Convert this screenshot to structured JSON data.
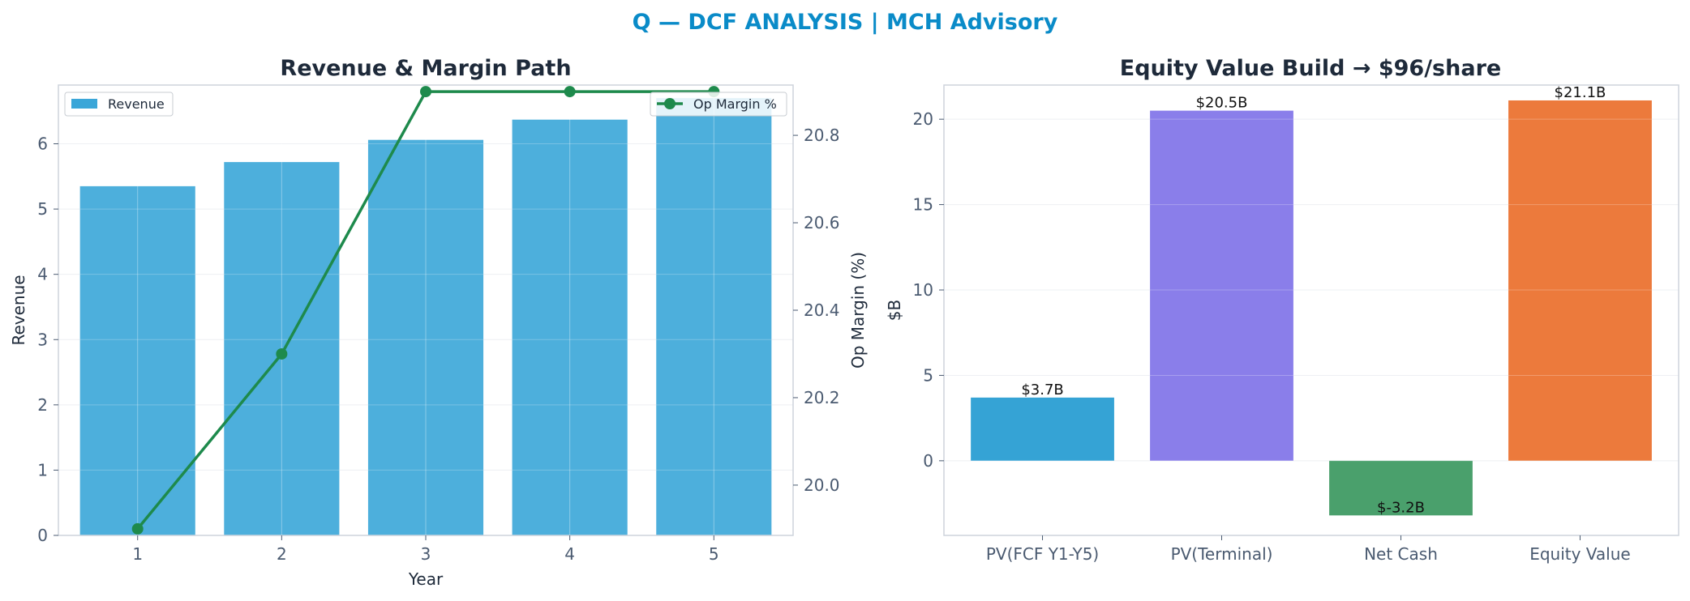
{
  "header": {
    "title": "Q — DCF ANALYSIS | MCH Advisory",
    "title_color": "#0a8bc8"
  },
  "chart_data": [
    {
      "type": "bar",
      "title": "Revenue & Margin Path",
      "xlabel": "Year",
      "ylabel": "Revenue",
      "y2label": "Op Margin (%)",
      "categories": [
        "1",
        "2",
        "3",
        "4",
        "5"
      ],
      "ylim": [
        0,
        6.9
      ],
      "y2lim": [
        19.885,
        20.915
      ],
      "yticks": [
        "0",
        "1",
        "2",
        "3",
        "4",
        "5",
        "6"
      ],
      "y2ticks": [
        "20.0",
        "20.2",
        "20.4",
        "20.6",
        "20.8"
      ],
      "series": [
        {
          "name": "Revenue",
          "kind": "bar",
          "axis": "left",
          "values": [
            5.35,
            5.72,
            6.06,
            6.37,
            6.7
          ],
          "color": "#3aa6d8"
        },
        {
          "name": "Op Margin %",
          "kind": "line",
          "axis": "right",
          "values": [
            19.9,
            20.3,
            20.9,
            20.9,
            20.9
          ],
          "color": "#1e8a4c"
        }
      ],
      "grid": true,
      "legend": {
        "Revenue": "top-left",
        "Op Margin %": "top-right"
      }
    },
    {
      "type": "bar",
      "title": "Equity Value Build → $96/share",
      "xlabel": "",
      "ylabel": "$B",
      "categories": [
        "PV(FCF Y1-Y5)",
        "PV(Terminal)",
        "Net Cash",
        "Equity Value"
      ],
      "values": [
        3.7,
        20.5,
        -3.2,
        21.1
      ],
      "labels": [
        "$3.7B",
        "$20.5B",
        "$-3.2B",
        "$21.1B"
      ],
      "colors": [
        "#35a3d5",
        "#8a7eea",
        "#4aa06c",
        "#ec7a3c"
      ],
      "ylim": [
        -4.37,
        22.0
      ],
      "yticks": [
        "0",
        "5",
        "10",
        "15",
        "20"
      ],
      "grid": true
    }
  ]
}
